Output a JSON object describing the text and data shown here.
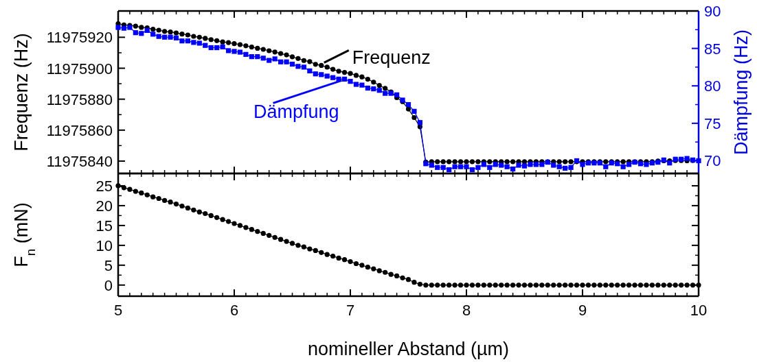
{
  "chart_data": [
    {
      "type": "line",
      "ylabel": "Frequenz (Hz)",
      "y2label": "Dämpfung (Hz)",
      "tick_labels": "y",
      "x": [
        5,
        5.05,
        5.1,
        5.15,
        5.2,
        5.25,
        5.3,
        5.35,
        5.4,
        5.45,
        5.5,
        5.55,
        5.6,
        5.65,
        5.7,
        5.75,
        5.8,
        5.85,
        5.9,
        5.95,
        6,
        6.05,
        6.1,
        6.15,
        6.2,
        6.25,
        6.3,
        6.35,
        6.4,
        6.45,
        6.5,
        6.55,
        6.6,
        6.65,
        6.7,
        6.75,
        6.8,
        6.85,
        6.9,
        6.95,
        7,
        7.05,
        7.1,
        7.15,
        7.2,
        7.25,
        7.3,
        7.35,
        7.4,
        7.45,
        7.5,
        7.55,
        7.6,
        7.65,
        7.7,
        7.75,
        7.8,
        7.85,
        7.9,
        7.95,
        8,
        8.05,
        8.1,
        8.15,
        8.2,
        8.25,
        8.3,
        8.35,
        8.4,
        8.45,
        8.5,
        8.55,
        8.6,
        8.65,
        8.7,
        8.75,
        8.8,
        8.85,
        8.9,
        8.95,
        9,
        9.05,
        9.1,
        9.15,
        9.2,
        9.25,
        9.3,
        9.35,
        9.4,
        9.45,
        9.5,
        9.55,
        9.6,
        9.65,
        9.7,
        9.75,
        9.8,
        9.85,
        9.9,
        9.95,
        10
      ],
      "xlim": [
        5,
        10
      ],
      "xticks": [
        5,
        6,
        7,
        8,
        9,
        10
      ],
      "ylim": [
        11975832,
        11975937
      ],
      "yticks": [
        11975840,
        11975860,
        11975880,
        11975900,
        11975920
      ],
      "y2lim": [
        68.3,
        90
      ],
      "y2ticks": [
        70,
        75,
        80,
        85,
        90
      ],
      "series": [
        {
          "name": "Frequenz",
          "color": "#000000",
          "marker": "circle",
          "values": [
            11975928.8,
            11975928.0,
            11975927.7,
            11975927.2,
            11975926.4,
            11975926.1,
            11975925.2,
            11975924.6,
            11975923.8,
            11975923.4,
            11975922.8,
            11975922.1,
            11975921.5,
            11975920.6,
            11975920.0,
            11975919.3,
            11975918.5,
            11975917.8,
            11975917.0,
            11975916.6,
            11975915.9,
            11975915.3,
            11975914.5,
            11975913.7,
            11975912.9,
            11975912.2,
            11975911.3,
            11975910.5,
            11975909.5,
            11975908.6,
            11975907.4,
            11975906.3,
            11975905.0,
            11975904.3,
            11975902.5,
            11975901.8,
            11975900.7,
            11975899.3,
            11975898.1,
            11975897.3,
            11975896.6,
            11975895.4,
            11975894.4,
            11975892.9,
            11975891.0,
            11975888.9,
            11975887.0,
            11975884.7,
            11975881.0,
            11975878.4,
            11975873.6,
            11975868.1,
            11975862.2,
            11975839.4,
            11975839.6,
            11975839.6,
            11975839.6,
            11975839.6,
            11975839.6,
            11975839.6,
            11975839.6,
            11975839.6,
            11975839.6,
            11975839.6,
            11975839.6,
            11975839.6,
            11975839.6,
            11975839.6,
            11975839.6,
            11975839.6,
            11975839.6,
            11975839.6,
            11975839.6,
            11975839.6,
            11975839.6,
            11975839.6,
            11975839.6,
            11975839.6,
            11975839.6,
            11975839.6,
            11975839.6,
            11975839.6,
            11975839.6,
            11975839.6,
            11975839.6,
            11975839.6,
            11975839.6,
            11975839.6,
            11975839.6,
            11975839.6,
            11975839.6,
            11975839.6,
            11975839.6,
            11975840.0,
            11975840.2,
            11975840.2,
            11975840.3,
            11975840.3,
            11975840.2,
            11975840.3,
            null
          ]
        },
        {
          "name": "Dämpfung",
          "color": "#0000ff",
          "marker": "square",
          "axis": "y2",
          "values": [
            87.8,
            87.7,
            87.8,
            87.1,
            87.0,
            87.4,
            86.9,
            86.6,
            86.5,
            86.5,
            86.4,
            86.0,
            86.0,
            85.8,
            85.7,
            85.4,
            85.1,
            85.1,
            85.2,
            84.7,
            84.6,
            84.5,
            84.2,
            83.9,
            83.9,
            83.7,
            83.4,
            83.6,
            83.2,
            83.2,
            82.9,
            82.6,
            82.5,
            82.0,
            81.6,
            81.5,
            81.3,
            81.1,
            80.9,
            80.9,
            80.6,
            80.2,
            80.1,
            79.7,
            79.6,
            79.4,
            79.0,
            79.0,
            78.8,
            78.1,
            77.5,
            76.6,
            75.1,
            69.6,
            69.4,
            69.1,
            69.1,
            68.8,
            69.2,
            69.2,
            69.2,
            68.8,
            69.1,
            69.5,
            69.1,
            69.5,
            69.4,
            69.2,
            68.9,
            69.4,
            69.3,
            69.5,
            69.5,
            69.5,
            69.8,
            69.4,
            69.2,
            69.0,
            69.1,
            70.0,
            69.5,
            69.7,
            69.7,
            69.7,
            69.2,
            69.7,
            69.6,
            69.2,
            69.5,
            69.8,
            69.6,
            69.5,
            69.7,
            69.8,
            70.1,
            69.7,
            70.2,
            70.2,
            70.3,
            70.1,
            70.0
          ]
        }
      ]
    },
    {
      "type": "line",
      "ylabel": "F$_{n}$ (mN)",
      "xlabel": "nomineller Abstand (µm)",
      "x": [
        5,
        5.05,
        5.1,
        5.15,
        5.2,
        5.25,
        5.3,
        5.35,
        5.4,
        5.45,
        5.5,
        5.55,
        5.6,
        5.65,
        5.7,
        5.75,
        5.8,
        5.85,
        5.9,
        5.95,
        6,
        6.05,
        6.1,
        6.15,
        6.2,
        6.25,
        6.3,
        6.35,
        6.4,
        6.45,
        6.5,
        6.55,
        6.6,
        6.65,
        6.7,
        6.75,
        6.8,
        6.85,
        6.9,
        6.95,
        7,
        7.05,
        7.1,
        7.15,
        7.2,
        7.25,
        7.3,
        7.35,
        7.4,
        7.45,
        7.5,
        7.55,
        7.6,
        7.65,
        7.7,
        7.75,
        7.8,
        7.85,
        7.9,
        7.95,
        8,
        8.05,
        8.1,
        8.15,
        8.2,
        8.25,
        8.3,
        8.35,
        8.4,
        8.45,
        8.5,
        8.55,
        8.6,
        8.65,
        8.7,
        8.75,
        8.8,
        8.85,
        8.9,
        8.95,
        9,
        9.05,
        9.1,
        9.15,
        9.2,
        9.25,
        9.3,
        9.35,
        9.4,
        9.45,
        9.5,
        9.55,
        9.6,
        9.65,
        9.7,
        9.75,
        9.8,
        9.85,
        9.9,
        9.95,
        10
      ],
      "xlim": [
        5,
        10
      ],
      "xticks": [
        5,
        6,
        7,
        8,
        9,
        10
      ],
      "ylim": [
        -2.8,
        28.1
      ],
      "yticks": [
        0,
        5,
        10,
        15,
        20,
        25
      ],
      "series": [
        {
          "color": "#000000",
          "marker": "circle",
          "values": [
            25.0,
            24.5,
            24.1,
            23.6,
            23.2,
            22.7,
            22.2,
            21.8,
            21.3,
            20.9,
            20.4,
            19.9,
            19.4,
            18.9,
            18.4,
            18.0,
            17.5,
            17.0,
            16.5,
            16.0,
            15.5,
            15.0,
            14.5,
            14.0,
            13.5,
            13.0,
            12.5,
            12.0,
            11.5,
            11.0,
            10.5,
            10.0,
            9.6,
            9.1,
            8.7,
            8.2,
            7.7,
            7.3,
            6.8,
            6.4,
            5.9,
            5.4,
            5.0,
            4.5,
            4.1,
            3.6,
            3.2,
            2.7,
            2.3,
            1.8,
            1.4,
            0.7,
            0.2,
            0.0,
            0,
            0,
            0,
            0,
            0,
            0,
            0,
            0,
            0,
            0,
            0,
            0,
            0,
            0,
            0,
            0,
            0,
            0,
            0,
            0,
            0,
            0,
            0,
            0,
            0,
            0,
            0,
            0,
            0,
            0,
            0,
            0,
            0,
            0,
            0,
            0,
            0,
            0,
            0,
            0,
            0,
            0,
            0,
            0,
            0,
            0,
            0
          ]
        }
      ]
    }
  ]
}
